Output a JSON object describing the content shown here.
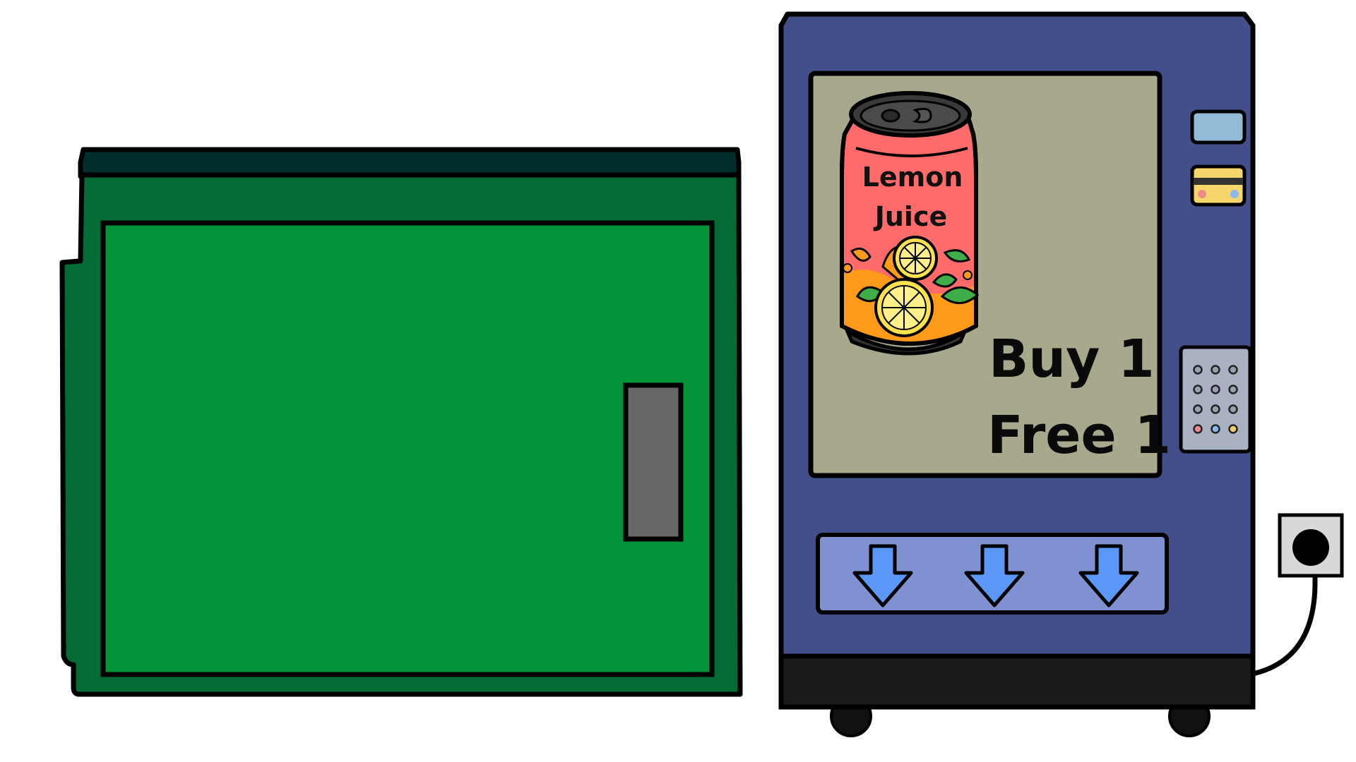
{
  "scene": {
    "cabinet": {
      "name": "green cabinet",
      "handle": "door handle"
    },
    "vending_machine": {
      "can_label_line1": "Lemon",
      "can_label_line2": "Juice",
      "promo_line1": "Buy 1",
      "promo_line2": "Free 1",
      "dispense_arrows": [
        "down-arrow",
        "down-arrow",
        "down-arrow"
      ],
      "keypad": {
        "rows": 4,
        "cols": 3,
        "accent_buttons": [
          "#f08a8a",
          "#8ab8f0",
          "#f0d070"
        ]
      }
    },
    "power_outlet": "wall socket"
  },
  "colors": {
    "cabinet_body": "#03943a",
    "cabinet_frame": "#046a36",
    "cabinet_top": "#022e2e",
    "handle": "#666666",
    "machine_body": "#434f8a",
    "machine_base": "#1a1a1a",
    "display_bg": "#a8a88c",
    "can_red": "#ff6b6b",
    "can_orange": "#ff9a1a",
    "tray": "#7f91d0",
    "arrow": "#5a97f7",
    "bill_slot": "#93bad6",
    "card_slot": "#f5d66a",
    "keypad": "#a9b1c3",
    "outlet": "#d8d8d8"
  }
}
